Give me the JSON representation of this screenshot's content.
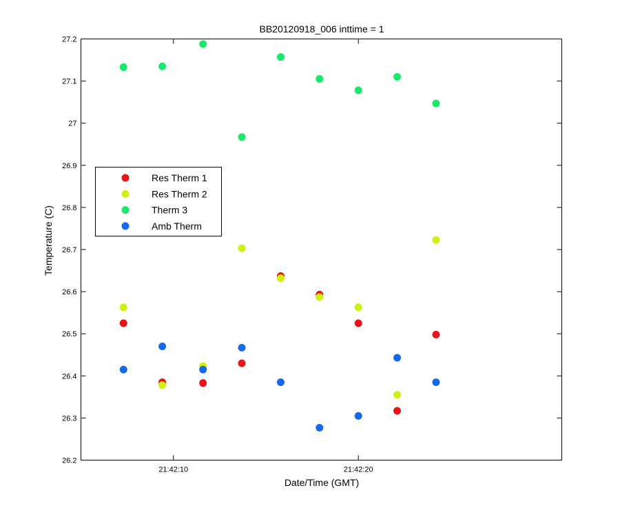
{
  "chart_data": {
    "type": "scatter",
    "title": "BB20120918_006 inttime = 1",
    "xlabel": "Date/Time (GMT)",
    "ylabel": "Temperature (C)",
    "xlim": [
      "21:42:05",
      "21:42:31"
    ],
    "ylim": [
      26.2,
      27.2
    ],
    "x_tick_labels": [
      "21:42:10",
      "21:42:20"
    ],
    "y_tick_labels": [
      "26.2",
      "26.3",
      "26.4",
      "26.5",
      "26.6",
      "26.7",
      "26.8",
      "26.9",
      "27",
      "27.1",
      "27.2"
    ],
    "grid": false,
    "legend_position": "left, middle",
    "x": [
      "21:42:07.3",
      "21:42:09.4",
      "21:42:11.6",
      "21:42:13.7",
      "21:42:15.8",
      "21:42:17.9",
      "21:42:20.0",
      "21:42:22.1",
      "21:42:24.2"
    ],
    "series": [
      {
        "name": "Res Therm 1",
        "color": "#e8141a",
        "values": [
          26.525,
          26.385,
          26.383,
          26.43,
          26.637,
          26.593,
          26.525,
          26.317,
          26.498
        ]
      },
      {
        "name": "Res Therm 2",
        "color": "#d2f00f",
        "values": [
          26.563,
          26.378,
          26.423,
          26.703,
          26.632,
          26.587,
          26.563,
          26.355,
          26.723
        ]
      },
      {
        "name": "Therm 3",
        "color": "#1ae86a",
        "values": [
          27.133,
          27.135,
          27.188,
          26.967,
          27.157,
          27.105,
          27.078,
          27.11,
          27.047
        ]
      },
      {
        "name": "Amb Therm",
        "color": "#1569ee",
        "values": [
          26.415,
          26.47,
          26.415,
          26.467,
          26.385,
          26.277,
          26.305,
          26.443,
          26.385
        ]
      }
    ]
  }
}
